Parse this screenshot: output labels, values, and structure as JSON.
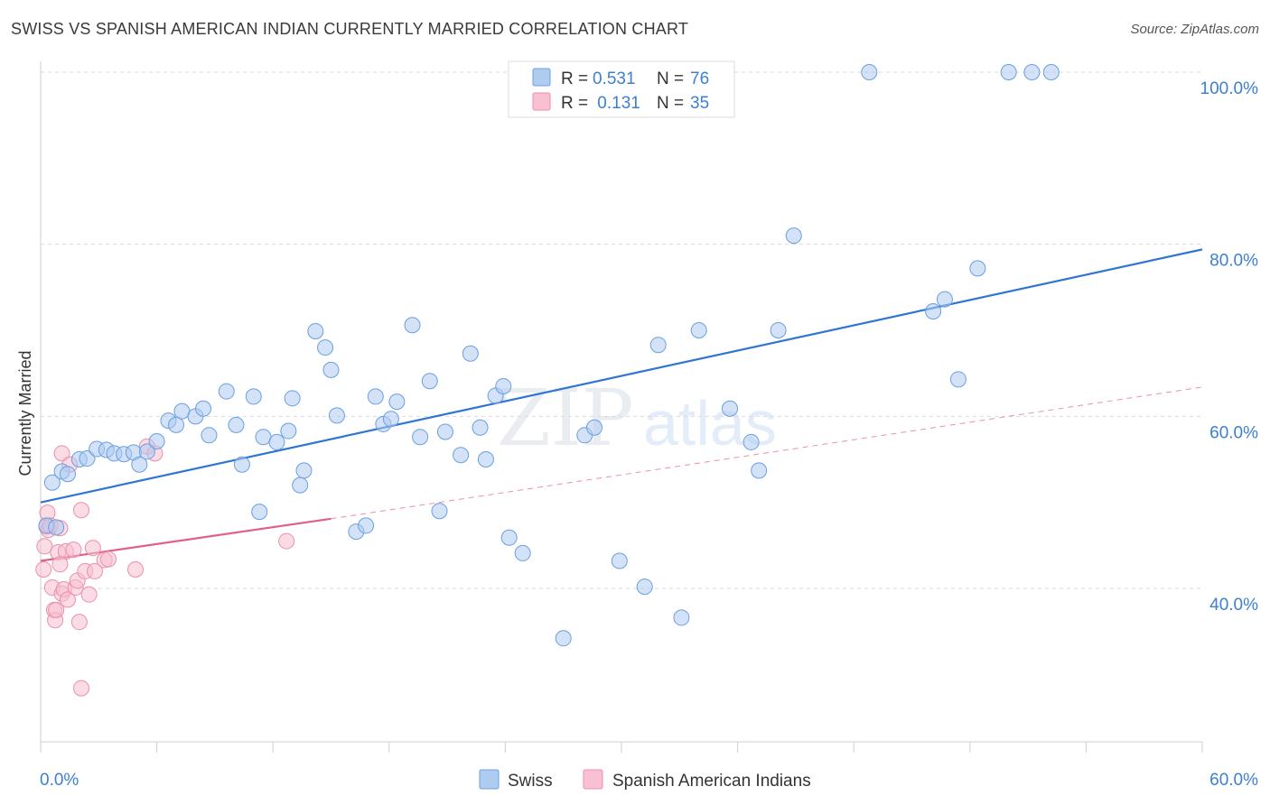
{
  "title": "SWISS VS SPANISH AMERICAN INDIAN CURRENTLY MARRIED CORRELATION CHART",
  "source": "Source: ZipAtlas.com",
  "watermark": {
    "zip": "ZIP",
    "atlas": "atlas"
  },
  "legend": {
    "rows": [
      {
        "r_label": "R = ",
        "r_value": "0.531",
        "n_label": "N = ",
        "n_value": "76"
      },
      {
        "r_label": "R = ",
        "r_value": " 0.131",
        "n_label": "N = ",
        "n_value": "35"
      }
    ]
  },
  "bottom_legend": [
    "Swiss",
    "Spanish American Indians"
  ],
  "colors": {
    "swiss_fill": "#aecbf0",
    "swiss_stroke": "#6a9fe0",
    "swiss_line": "#2f76d2",
    "sai_fill": "#f8c0d0",
    "sai_stroke": "#ea8fac",
    "sai_line": "#e0608a",
    "tick_label": "#3d7fd0",
    "grid": "#d9d9d9"
  },
  "chart_data": {
    "type": "scatter",
    "xlabel": "",
    "ylabel": "Currently Married",
    "xlim": [
      0,
      60
    ],
    "ylim": [
      22,
      104
    ],
    "x_tick_labels": [
      "0.0%",
      "60.0%"
    ],
    "y_ticks": [
      40,
      60,
      80,
      100
    ],
    "y_tick_labels": [
      "40.0%",
      "60.0%",
      "80.0%",
      "100.0%"
    ],
    "grid": "horizontal dashed",
    "legend_position": "top-center",
    "series": [
      {
        "name": "Swiss",
        "r": 0.531,
        "n": 76,
        "trend": {
          "x": [
            0,
            60
          ],
          "y": [
            50.0,
            79.4
          ]
        },
        "points": [
          [
            0.3,
            47.3
          ],
          [
            0.6,
            52.3
          ],
          [
            0.8,
            47.1
          ],
          [
            1.1,
            53.6
          ],
          [
            1.4,
            53.3
          ],
          [
            2.0,
            55.0
          ],
          [
            2.4,
            55.1
          ],
          [
            2.9,
            56.2
          ],
          [
            3.4,
            56.1
          ],
          [
            3.8,
            55.7
          ],
          [
            4.3,
            55.6
          ],
          [
            4.8,
            55.8
          ],
          [
            5.1,
            54.4
          ],
          [
            5.5,
            55.9
          ],
          [
            6.0,
            57.1
          ],
          [
            6.6,
            59.5
          ],
          [
            7.0,
            59.0
          ],
          [
            7.3,
            60.6
          ],
          [
            8.0,
            60.0
          ],
          [
            8.4,
            60.9
          ],
          [
            8.7,
            57.8
          ],
          [
            9.6,
            62.9
          ],
          [
            10.1,
            59.0
          ],
          [
            10.4,
            54.4
          ],
          [
            11.0,
            62.3
          ],
          [
            11.3,
            48.9
          ],
          [
            11.5,
            57.6
          ],
          [
            12.2,
            57.0
          ],
          [
            12.8,
            58.3
          ],
          [
            13.0,
            62.1
          ],
          [
            13.4,
            52.0
          ],
          [
            13.6,
            53.7
          ],
          [
            14.2,
            69.9
          ],
          [
            14.7,
            68.0
          ],
          [
            15.0,
            65.4
          ],
          [
            15.3,
            60.1
          ],
          [
            16.3,
            46.6
          ],
          [
            16.8,
            47.3
          ],
          [
            17.3,
            62.3
          ],
          [
            17.7,
            59.1
          ],
          [
            18.1,
            59.7
          ],
          [
            18.4,
            61.7
          ],
          [
            19.2,
            70.6
          ],
          [
            19.6,
            57.6
          ],
          [
            20.1,
            64.1
          ],
          [
            20.6,
            49.0
          ],
          [
            20.9,
            58.2
          ],
          [
            21.7,
            55.5
          ],
          [
            22.2,
            67.3
          ],
          [
            22.7,
            58.7
          ],
          [
            23.0,
            55.0
          ],
          [
            23.5,
            62.4
          ],
          [
            23.9,
            63.5
          ],
          [
            24.2,
            45.9
          ],
          [
            24.9,
            44.1
          ],
          [
            27.0,
            34.2
          ],
          [
            28.1,
            57.8
          ],
          [
            28.6,
            58.7
          ],
          [
            29.9,
            43.2
          ],
          [
            31.2,
            40.2
          ],
          [
            31.9,
            68.3
          ],
          [
            33.1,
            36.6
          ],
          [
            34.0,
            70.0
          ],
          [
            35.6,
            60.9
          ],
          [
            36.7,
            57.0
          ],
          [
            37.1,
            53.7
          ],
          [
            38.1,
            70.0
          ],
          [
            38.9,
            81.0
          ],
          [
            42.8,
            100.0
          ],
          [
            46.1,
            72.2
          ],
          [
            46.7,
            73.6
          ],
          [
            47.4,
            64.3
          ],
          [
            48.4,
            77.2
          ],
          [
            50.0,
            100.0
          ],
          [
            51.2,
            100.0
          ],
          [
            52.2,
            100.0
          ]
        ]
      },
      {
        "name": "Spanish American Indians",
        "r": 0.131,
        "n": 35,
        "trend": {
          "x": [
            0,
            15
          ],
          "y": [
            43.2,
            48.1
          ]
        },
        "trend_extended": {
          "x": [
            15,
            60
          ],
          "y": [
            48.1,
            63.4
          ]
        },
        "points": [
          [
            0.15,
            42.2
          ],
          [
            0.2,
            44.9
          ],
          [
            0.3,
            47.2
          ],
          [
            0.35,
            48.8
          ],
          [
            0.4,
            46.8
          ],
          [
            0.5,
            47.3
          ],
          [
            0.6,
            40.1
          ],
          [
            0.7,
            37.5
          ],
          [
            0.75,
            36.3
          ],
          [
            0.8,
            37.5
          ],
          [
            0.9,
            44.2
          ],
          [
            1.0,
            47.0
          ],
          [
            1.1,
            39.4
          ],
          [
            1.2,
            39.9
          ],
          [
            1.1,
            55.7
          ],
          [
            1.3,
            44.3
          ],
          [
            1.4,
            38.7
          ],
          [
            1.5,
            54.4
          ],
          [
            1.7,
            44.5
          ],
          [
            1.8,
            40.1
          ],
          [
            1.9,
            40.9
          ],
          [
            2.0,
            36.1
          ],
          [
            2.1,
            28.4
          ],
          [
            2.1,
            49.1
          ],
          [
            2.3,
            42.0
          ],
          [
            2.5,
            39.3
          ],
          [
            2.7,
            44.7
          ],
          [
            2.8,
            42.0
          ],
          [
            3.3,
            43.3
          ],
          [
            3.5,
            43.4
          ],
          [
            4.9,
            42.2
          ],
          [
            5.5,
            56.5
          ],
          [
            5.9,
            55.7
          ],
          [
            12.7,
            45.5
          ],
          [
            1.0,
            42.8
          ]
        ]
      }
    ]
  }
}
